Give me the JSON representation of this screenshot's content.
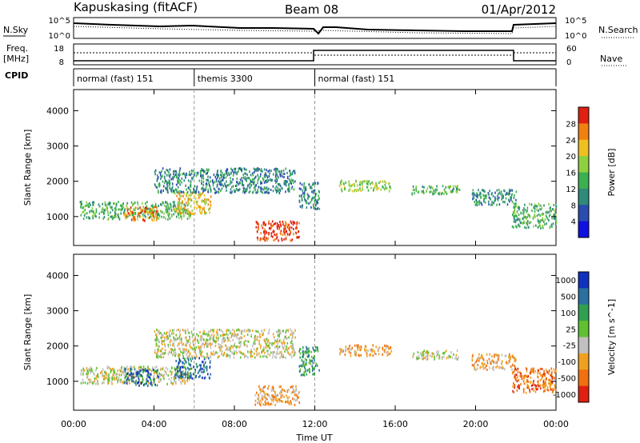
{
  "header": {
    "station": "Kapuskasing (fitACF)",
    "beam": "Beam 08",
    "date": "01/Apr/2012"
  },
  "noise_panel": {
    "left_label": "N.Sky",
    "right_label": "N.Search",
    "left_ticks": [
      "10^5",
      "10^0"
    ],
    "right_ticks": [
      "10^5",
      "10^0"
    ]
  },
  "freq_panel": {
    "left_label_line1": "Freq.",
    "left_label_line2": "[MHz]",
    "right_label": "Nave",
    "left_ticks": [
      "18",
      "8"
    ],
    "right_ticks": [
      "60",
      "0"
    ]
  },
  "cpid_panel": {
    "label": "CPID",
    "segments": [
      {
        "start_hour": 0,
        "end_hour": 6,
        "text": "normal (fast) 151"
      },
      {
        "start_hour": 6,
        "end_hour": 12,
        "text": "themis 3300"
      },
      {
        "start_hour": 12,
        "end_hour": 24,
        "text": "normal (fast) 151"
      }
    ]
  },
  "x_axis": {
    "label": "Time UT",
    "ticks": [
      "00:00",
      "04:00",
      "08:00",
      "12:00",
      "16:00",
      "20:00",
      "00:00"
    ],
    "tick_hours": [
      0,
      4,
      8,
      12,
      16,
      20,
      24
    ]
  },
  "chart_data": [
    {
      "type": "heatmap",
      "panel": "power",
      "ylabel": "Slant Range [km]",
      "yticks": [
        "1000",
        "2000",
        "3000",
        "4000"
      ],
      "ytick_values": [
        1000,
        2000,
        3000,
        4000
      ],
      "ylim": [
        180,
        4600
      ],
      "xlim": [
        0,
        24
      ],
      "colorbar_label": "Power [dB]",
      "colorbar_ticks": [
        "4",
        "8",
        "12",
        "16",
        "20",
        "24",
        "28"
      ],
      "colors": [
        "#1010e0",
        "#2a4cb0",
        "#2e8a7a",
        "#3bb050",
        "#8fd040",
        "#f0c020",
        "#f08010",
        "#e02010"
      ],
      "echo_regions": [
        {
          "t0": 0.3,
          "t1": 5.8,
          "r0": 950,
          "r1": 1450,
          "level": 3
        },
        {
          "t0": 2.5,
          "t1": 4.2,
          "r0": 900,
          "r1": 1300,
          "level": 6
        },
        {
          "t0": 5.0,
          "t1": 6.8,
          "r0": 1100,
          "r1": 1700,
          "level": 5
        },
        {
          "t0": 4.0,
          "t1": 11.0,
          "r0": 1700,
          "r1": 2400,
          "level": 2
        },
        {
          "t0": 9.0,
          "t1": 11.2,
          "r0": 350,
          "r1": 900,
          "level": 7
        },
        {
          "t0": 11.2,
          "t1": 12.2,
          "r0": 1200,
          "r1": 2000,
          "level": 2
        },
        {
          "t0": 13.2,
          "t1": 15.8,
          "r0": 1750,
          "r1": 2050,
          "level": 4
        },
        {
          "t0": 16.8,
          "t1": 19.2,
          "r0": 1650,
          "r1": 1900,
          "level": 3
        },
        {
          "t0": 19.8,
          "t1": 22.0,
          "r0": 1350,
          "r1": 1800,
          "level": 2
        },
        {
          "t0": 21.8,
          "t1": 24.0,
          "r0": 700,
          "r1": 1400,
          "level": 3
        }
      ]
    },
    {
      "type": "heatmap",
      "panel": "velocity",
      "ylabel": "Slant Range [km]",
      "yticks": [
        "1000",
        "2000",
        "3000",
        "4000"
      ],
      "ytick_values": [
        1000,
        2000,
        3000,
        4000
      ],
      "ylim": [
        180,
        4600
      ],
      "xlim": [
        0,
        24
      ],
      "colorbar_label": "Velocity [m s^-1]",
      "colorbar_ticks": [
        "1000",
        "500",
        "100",
        "25",
        "-25",
        "-100",
        "-500",
        "-1000"
      ],
      "colors": [
        "#1030c0",
        "#2a70a0",
        "#30a050",
        "#60c030",
        "#c0c0c0",
        "#f0a020",
        "#f07010",
        "#e02010"
      ],
      "echo_regions": [
        {
          "t0": 0.3,
          "t1": 5.8,
          "r0": 950,
          "r1": 1450,
          "level": 4
        },
        {
          "t0": 2.5,
          "t1": 4.2,
          "r0": 900,
          "r1": 1400,
          "level": 1
        },
        {
          "t0": 5.0,
          "t1": 6.8,
          "r0": 1100,
          "r1": 1700,
          "level": 1
        },
        {
          "t0": 4.0,
          "t1": 11.0,
          "r0": 1700,
          "r1": 2500,
          "level": 4
        },
        {
          "t0": 9.0,
          "t1": 11.2,
          "r0": 350,
          "r1": 900,
          "level": 5
        },
        {
          "t0": 11.2,
          "t1": 12.2,
          "r0": 1200,
          "r1": 2000,
          "level": 2
        },
        {
          "t0": 13.2,
          "t1": 15.8,
          "r0": 1750,
          "r1": 2050,
          "level": 5
        },
        {
          "t0": 16.8,
          "t1": 19.2,
          "r0": 1650,
          "r1": 1900,
          "level": 4
        },
        {
          "t0": 19.8,
          "t1": 22.0,
          "r0": 1350,
          "r1": 1800,
          "level": 5
        },
        {
          "t0": 21.8,
          "t1": 24.0,
          "r0": 700,
          "r1": 1400,
          "level": 6
        }
      ]
    }
  ]
}
